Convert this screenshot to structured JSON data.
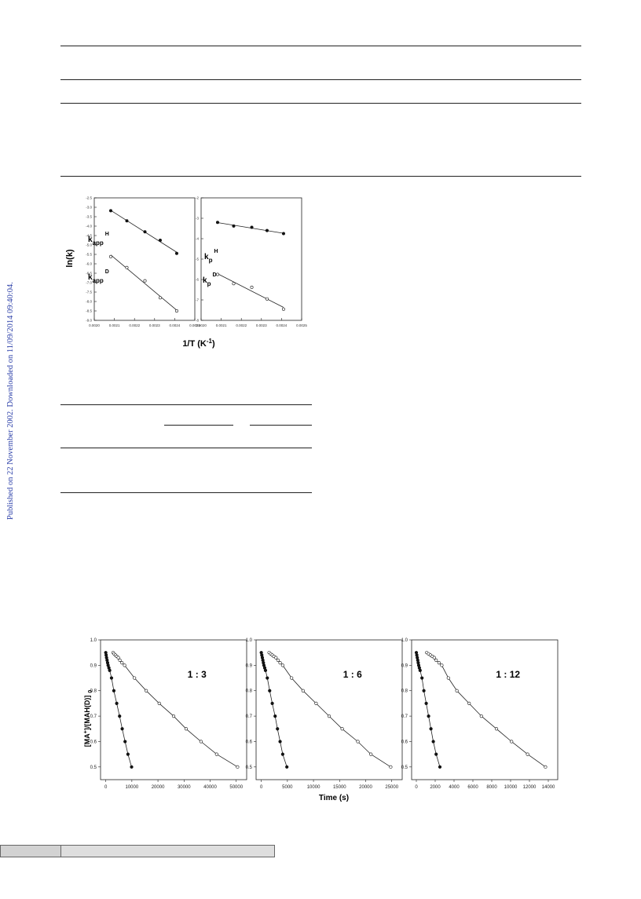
{
  "side_note": "Published on 22 November 2002. Downloaded on 11/09/2014 09:40:04.",
  "figure_arrhenius": {
    "ylabel": "ln(k)",
    "xlabel_main": "1/T (K",
    "xlabel_sup": "-1",
    "xlabel_end": ")",
    "left_panel": {
      "ytick_labels": [
        "-2.5",
        "-3.0",
        "-3.5",
        "-4.0",
        "-4.5",
        "-5.0",
        "-5.5",
        "-6.0",
        "-6.5",
        "-7.0",
        "-7.5",
        "-8.0",
        "-8.5",
        "-9.0"
      ],
      "xtick_labels": [
        "0.0020",
        "0.0021",
        "0.0022",
        "0.0023",
        "0.0024",
        "0.0025"
      ],
      "label_H": {
        "main": "k",
        "sub": "app",
        "sup": "H"
      },
      "label_D": {
        "main": "k",
        "sub": "app",
        "sup": "D"
      }
    },
    "right_panel": {
      "ytick_labels": [
        "-2",
        "-3",
        "-4",
        "-5",
        "-6",
        "-7",
        "-8"
      ],
      "xtick_labels": [
        "0.0020",
        "0.0021",
        "0.0022",
        "0.0023",
        "0.0024",
        "0.0025"
      ],
      "label_H": {
        "main": "k",
        "sub": "p",
        "sup": "H"
      },
      "label_D": {
        "main": "k",
        "sub": "p",
        "sup": "D"
      }
    },
    "chart_data": [
      {
        "type": "scatter",
        "xlim": [
          0.002,
          0.0025
        ],
        "ylim": [
          -9.0,
          -2.5
        ],
        "series": [
          {
            "name": "k_app^H",
            "marker": "filled",
            "fit_line": true,
            "x": [
              0.002082,
              0.002162,
              0.002252,
              0.002328,
              0.00241
            ],
            "y": [
              -3.18,
              -3.72,
              -4.3,
              -4.75,
              -5.45
            ]
          },
          {
            "name": "k_app^D",
            "marker": "open",
            "fit_line": true,
            "x": [
              0.002082,
              0.002162,
              0.002252,
              0.002328,
              0.00241
            ],
            "y": [
              -5.62,
              -6.2,
              -6.9,
              -7.8,
              -8.5
            ]
          }
        ]
      },
      {
        "type": "scatter",
        "xlim": [
          0.002,
          0.0025
        ],
        "ylim": [
          -8,
          -2
        ],
        "series": [
          {
            "name": "k_p^H",
            "marker": "filled",
            "fit_line": true,
            "x": [
              0.002082,
              0.002162,
              0.002252,
              0.002328,
              0.00241
            ],
            "y": [
              -3.2,
              -3.38,
              -3.44,
              -3.6,
              -3.75
            ]
          },
          {
            "name": "k_p^D",
            "marker": "open",
            "fit_line": true,
            "x": [
              0.002082,
              0.002162,
              0.002252,
              0.002328,
              0.00241
            ],
            "y": [
              -5.75,
              -6.2,
              -6.38,
              -6.95,
              -7.45
            ]
          }
        ]
      }
    ]
  },
  "figure_kinetics": {
    "ylabel_parts": {
      "a": "[MA",
      "sup": "+",
      "b": "]/[MAH(D)]",
      "sub": "0"
    },
    "xlabel": "Time (s)",
    "ytick_labels": [
      "0.5",
      "0.6",
      "0.7",
      "0.8",
      "0.9",
      "1.0"
    ],
    "panels": [
      {
        "ratio_label": "1 : 3",
        "xtick_labels": [
          "0",
          "10000",
          "20000",
          "30000",
          "40000",
          "50000"
        ]
      },
      {
        "ratio_label": "1 : 6",
        "xtick_labels": [
          "0",
          "5000",
          "10000",
          "15000",
          "20000",
          "25000"
        ]
      },
      {
        "ratio_label": "1 : 12",
        "xtick_labels": [
          "0",
          "2000",
          "4000",
          "6000",
          "8000",
          "10000",
          "12000",
          "14000"
        ]
      }
    ],
    "chart_data": [
      {
        "type": "scatter",
        "xlim": [
          -2000,
          54000
        ],
        "ylim": [
          0.45,
          1.0
        ],
        "series": [
          {
            "marker": "filled",
            "x": [
              0,
              150,
              300,
              500,
              700,
              900,
              1200,
              1500,
              2200,
              3100,
              4200,
              5300,
              6300,
              7400,
              8500,
              9900
            ],
            "y": [
              0.95,
              0.94,
              0.93,
              0.92,
              0.91,
              0.9,
              0.89,
              0.88,
              0.85,
              0.8,
              0.75,
              0.7,
              0.65,
              0.6,
              0.55,
              0.5
            ]
          },
          {
            "marker": "open",
            "x": [
              2800,
              3200,
              3700,
              4200,
              4800,
              5400,
              6200,
              7200,
              11000,
              15500,
              20500,
              26000,
              30800,
              36500,
              42500,
              50500
            ],
            "y": [
              0.95,
              0.945,
              0.94,
              0.935,
              0.93,
              0.92,
              0.91,
              0.9,
              0.85,
              0.8,
              0.75,
              0.7,
              0.65,
              0.6,
              0.55,
              0.5
            ]
          }
        ]
      },
      {
        "type": "scatter",
        "xlim": [
          -1000,
          27000
        ],
        "ylim": [
          0.45,
          1.0
        ],
        "series": [
          {
            "marker": "filled",
            "x": [
              0,
              100,
              200,
              300,
              400,
              500,
              650,
              800,
              1150,
              1600,
              2100,
              2650,
              3100,
              3600,
              4100,
              4900
            ],
            "y": [
              0.95,
              0.94,
              0.93,
              0.92,
              0.91,
              0.9,
              0.89,
              0.88,
              0.85,
              0.8,
              0.75,
              0.7,
              0.65,
              0.6,
              0.55,
              0.5
            ]
          },
          {
            "marker": "open",
            "x": [
              1500,
              1800,
              2100,
              2400,
              2800,
              3200,
              3600,
              4100,
              5800,
              8000,
              10500,
              13000,
              15500,
              18500,
              21000,
              24800
            ],
            "y": [
              0.95,
              0.945,
              0.94,
              0.935,
              0.93,
              0.92,
              0.91,
              0.9,
              0.85,
              0.8,
              0.75,
              0.7,
              0.65,
              0.6,
              0.55,
              0.5
            ]
          }
        ]
      },
      {
        "type": "scatter",
        "xlim": [
          -500,
          15000
        ],
        "ylim": [
          0.45,
          1.0
        ],
        "series": [
          {
            "marker": "filled",
            "x": [
              0,
              50,
              100,
              150,
              200,
              250,
              320,
              400,
              600,
              800,
              1050,
              1300,
              1550,
              1800,
              2100,
              2500
            ],
            "y": [
              0.95,
              0.94,
              0.93,
              0.92,
              0.91,
              0.9,
              0.89,
              0.88,
              0.85,
              0.8,
              0.75,
              0.7,
              0.65,
              0.6,
              0.55,
              0.5
            ]
          },
          {
            "marker": "open",
            "x": [
              1100,
              1300,
              1500,
              1700,
              1900,
              2100,
              2400,
              2700,
              3400,
              4300,
              5600,
              6900,
              8500,
              10100,
              11800,
              13700
            ],
            "y": [
              0.95,
              0.945,
              0.94,
              0.935,
              0.93,
              0.92,
              0.91,
              0.9,
              0.85,
              0.8,
              0.75,
              0.7,
              0.65,
              0.6,
              0.55,
              0.5
            ]
          }
        ]
      }
    ]
  }
}
